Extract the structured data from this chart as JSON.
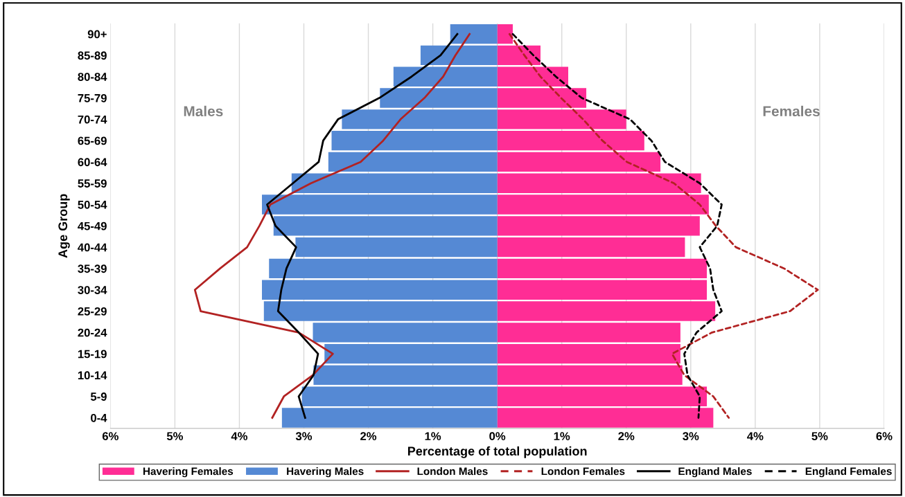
{
  "chart_data": {
    "type": "bar",
    "orientation": "horizontal",
    "ylabel": "Age Group",
    "xlabel": "Percentage of total population",
    "categories": [
      "90+",
      "85-89",
      "80-84",
      "75-79",
      "70-74",
      "65-69",
      "60-64",
      "55-59",
      "50-54",
      "45-49",
      "40-44",
      "35-39",
      "30-34",
      "25-29",
      "20-24",
      "15-19",
      "10-14",
      "5-9",
      "0-4"
    ],
    "series": [
      {
        "name": "Havering Females",
        "color": "#ff2d95",
        "values": [
          0.24,
          0.67,
          1.1,
          1.38,
          2.0,
          2.28,
          2.53,
          3.16,
          3.28,
          3.14,
          2.91,
          3.25,
          3.25,
          3.38,
          2.84,
          2.84,
          2.87,
          3.25,
          3.35
        ]
      },
      {
        "name": "Havering Males",
        "color": "#5589d4",
        "values": [
          -0.73,
          -1.19,
          -1.61,
          -1.82,
          -2.41,
          -2.57,
          -2.62,
          -3.19,
          -3.65,
          -3.47,
          -3.13,
          -3.54,
          -3.65,
          -3.62,
          -2.86,
          -2.68,
          -2.85,
          -3.03,
          -3.34
        ]
      },
      {
        "name": "London Males",
        "type": "line",
        "line_style": "solid",
        "color": "#b22222",
        "values": [
          -0.43,
          -0.65,
          -0.84,
          -1.13,
          -1.5,
          -1.77,
          -2.12,
          -2.89,
          -3.52,
          -3.69,
          -3.88,
          -4.3,
          -4.69,
          -4.6,
          -3.08,
          -2.55,
          -2.86,
          -3.31,
          -3.49
        ]
      },
      {
        "name": "London Females",
        "type": "line",
        "line_style": "dashed",
        "color": "#b22222",
        "values": [
          0.19,
          0.42,
          0.67,
          0.99,
          1.33,
          1.63,
          2.01,
          2.74,
          3.14,
          3.39,
          3.7,
          4.45,
          4.97,
          4.54,
          3.33,
          2.71,
          2.9,
          3.35,
          3.59
        ]
      },
      {
        "name": "England Males",
        "type": "line",
        "line_style": "solid",
        "color": "#000000",
        "values": [
          -0.62,
          -0.88,
          -1.33,
          -1.83,
          -2.47,
          -2.7,
          -2.77,
          -3.17,
          -3.57,
          -3.44,
          -3.12,
          -3.27,
          -3.35,
          -3.4,
          -3.08,
          -2.78,
          -2.85,
          -3.08,
          -2.98
        ]
      },
      {
        "name": "England Females",
        "type": "line",
        "line_style": "dashed",
        "color": "#000000",
        "values": [
          0.24,
          0.56,
          0.91,
          1.31,
          2.06,
          2.39,
          2.6,
          3.14,
          3.48,
          3.41,
          3.14,
          3.3,
          3.35,
          3.48,
          3.09,
          2.9,
          2.95,
          3.14,
          3.12
        ]
      }
    ],
    "xlim": [
      -6,
      6
    ],
    "xticks": [
      {
        "value": -6,
        "label": "6%"
      },
      {
        "value": -5,
        "label": "5%"
      },
      {
        "value": -4,
        "label": "4%"
      },
      {
        "value": -3,
        "label": "3%"
      },
      {
        "value": -2,
        "label": "2%"
      },
      {
        "value": -1,
        "label": "1%"
      },
      {
        "value": 0,
        "label": "0%"
      },
      {
        "value": 1,
        "label": "1%"
      },
      {
        "value": 2,
        "label": "2%"
      },
      {
        "value": 3,
        "label": "3%"
      },
      {
        "value": 4,
        "label": "4%"
      },
      {
        "value": 5,
        "label": "5%"
      },
      {
        "value": 6,
        "label": "6%"
      }
    ],
    "stacked": true,
    "grid": "x",
    "legend": "bottom",
    "annotations": [
      "Males",
      "Females"
    ]
  }
}
